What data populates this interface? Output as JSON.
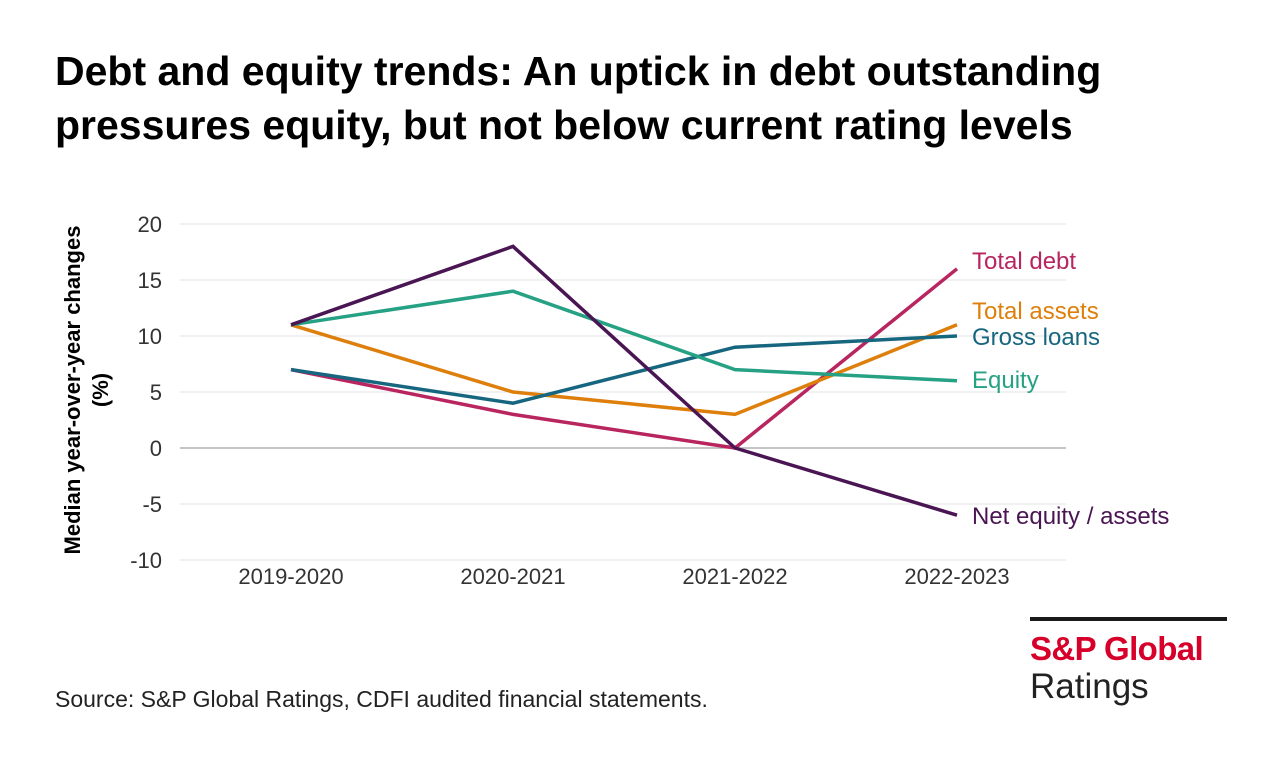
{
  "title_lines": [
    "Debt and equity trends: An uptick in debt outstanding",
    "pressures equity, but not below current rating levels"
  ],
  "source": "Source: S&P Global Ratings, CDFI audited financial statements.",
  "logo": {
    "brand": "S&P Global",
    "sub": "Ratings"
  },
  "chart_data": {
    "type": "line",
    "title": "Debt and equity trends: An uptick in debt outstanding pressures equity, but not below current rating levels",
    "xlabel": "",
    "ylabel": "Median year-over-year changes (%)",
    "ylabel_lines": [
      "Median year-over-year changes",
      "(%)"
    ],
    "categories": [
      "2019-2020",
      "2020-2021",
      "2021-2022",
      "2022-2023"
    ],
    "ylim": [
      -10,
      20
    ],
    "yticks": [
      20,
      15,
      10,
      5,
      0,
      -5,
      -10
    ],
    "grid": true,
    "legend": "direct labels at right end of each line",
    "series": [
      {
        "name": "Total debt",
        "color": "#b8255f",
        "values": [
          7,
          3,
          0,
          16
        ]
      },
      {
        "name": "Total assets",
        "color": "#de7f0c",
        "values": [
          11,
          5,
          3,
          11
        ]
      },
      {
        "name": "Gross loans",
        "color": "#17667f",
        "values": [
          7,
          4,
          9,
          10
        ]
      },
      {
        "name": "Equity",
        "color": "#26a184",
        "values": [
          11,
          14,
          7,
          6
        ]
      },
      {
        "name": "Net equity / assets",
        "color": "#4a1553",
        "values": [
          11,
          18,
          0,
          -6
        ]
      }
    ]
  }
}
